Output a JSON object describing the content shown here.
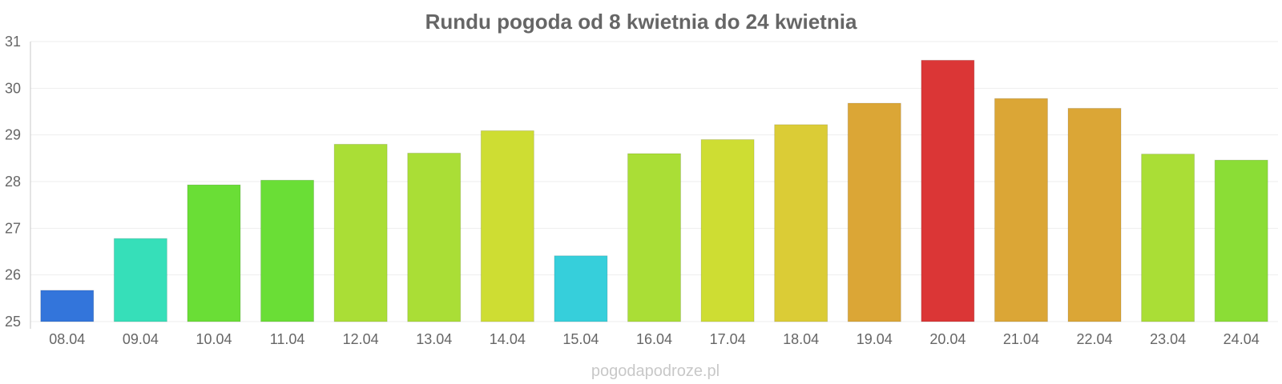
{
  "chart_data": {
    "type": "bar",
    "title": "Rundu pogoda od 8 kwietnia do 24 kwietnia",
    "xlabel": "",
    "ylabel": "",
    "ylim": [
      25,
      31
    ],
    "yticks": [
      25,
      26,
      27,
      28,
      29,
      30,
      31
    ],
    "grid": true,
    "categories": [
      "08.04",
      "09.04",
      "10.04",
      "11.04",
      "12.04",
      "13.04",
      "14.04",
      "15.04",
      "16.04",
      "17.04",
      "18.04",
      "19.04",
      "20.04",
      "21.04",
      "22.04",
      "23.04",
      "24.04"
    ],
    "values": [
      25.67,
      26.78,
      27.93,
      28.03,
      28.8,
      28.61,
      29.09,
      26.41,
      28.6,
      28.9,
      29.22,
      29.68,
      30.6,
      29.78,
      29.57,
      28.59,
      28.46
    ],
    "colors": [
      "#3375db",
      "#36dfb9",
      "#6ade36",
      "#6ade36",
      "#aade36",
      "#aade36",
      "#cedd33",
      "#36cfdb",
      "#aade36",
      "#cedd33",
      "#dbcc36",
      "#dba636",
      "#db3636",
      "#dba636",
      "#dba636",
      "#aade36",
      "#8bdd36"
    ]
  },
  "footer": {
    "source": "pogodapodroze.pl"
  }
}
